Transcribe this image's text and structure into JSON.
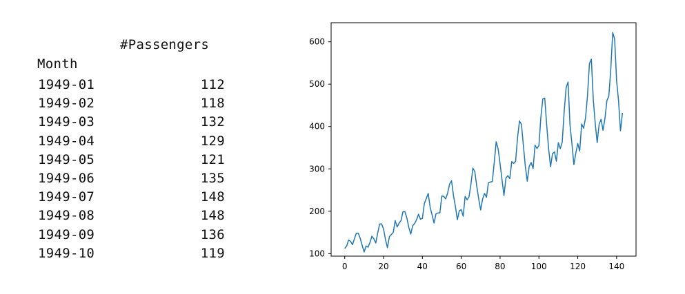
{
  "table": {
    "column_header": "#Passengers",
    "index_name": "Month",
    "rows": [
      {
        "month": "1949-01",
        "value": "112"
      },
      {
        "month": "1949-02",
        "value": "118"
      },
      {
        "month": "1949-03",
        "value": "132"
      },
      {
        "month": "1949-04",
        "value": "129"
      },
      {
        "month": "1949-05",
        "value": "121"
      },
      {
        "month": "1949-06",
        "value": "135"
      },
      {
        "month": "1949-07",
        "value": "148"
      },
      {
        "month": "1949-08",
        "value": "148"
      },
      {
        "month": "1949-09",
        "value": "136"
      },
      {
        "month": "1949-10",
        "value": "119"
      }
    ]
  },
  "chart_data": {
    "type": "line",
    "title": "",
    "xlabel": "",
    "ylabel": "",
    "xlim": [
      -7,
      150
    ],
    "ylim": [
      94,
      645
    ],
    "xticks": [
      0,
      20,
      40,
      60,
      80,
      100,
      120,
      140
    ],
    "yticks": [
      100,
      200,
      300,
      400,
      500,
      600
    ],
    "grid": false,
    "line_color": "#1f77b4",
    "series": [
      {
        "values": [
          112,
          118,
          132,
          129,
          121,
          135,
          148,
          148,
          136,
          119,
          104,
          118,
          115,
          126,
          141,
          135,
          125,
          149,
          170,
          170,
          158,
          133,
          114,
          140,
          145,
          150,
          178,
          163,
          172,
          178,
          199,
          199,
          184,
          162,
          146,
          166,
          171,
          180,
          193,
          181,
          183,
          218,
          230,
          242,
          209,
          191,
          172,
          194,
          196,
          196,
          236,
          235,
          229,
          243,
          264,
          272,
          237,
          211,
          180,
          201,
          204,
          188,
          235,
          227,
          234,
          264,
          302,
          293,
          259,
          229,
          203,
          229,
          242,
          233,
          267,
          269,
          270,
          315,
          364,
          347,
          312,
          274,
          237,
          278,
          284,
          277,
          317,
          313,
          318,
          374,
          413,
          405,
          355,
          306,
          271,
          306,
          315,
          301,
          356,
          348,
          355,
          422,
          465,
          467,
          404,
          347,
          305,
          336,
          340,
          318,
          362,
          348,
          363,
          435,
          491,
          505,
          404,
          359,
          310,
          337,
          360,
          342,
          406,
          396,
          420,
          472,
          548,
          559,
          463,
          407,
          362,
          405,
          417,
          391,
          419,
          461,
          472,
          535,
          622,
          606,
          508,
          461,
          390,
          432
        ]
      }
    ]
  }
}
